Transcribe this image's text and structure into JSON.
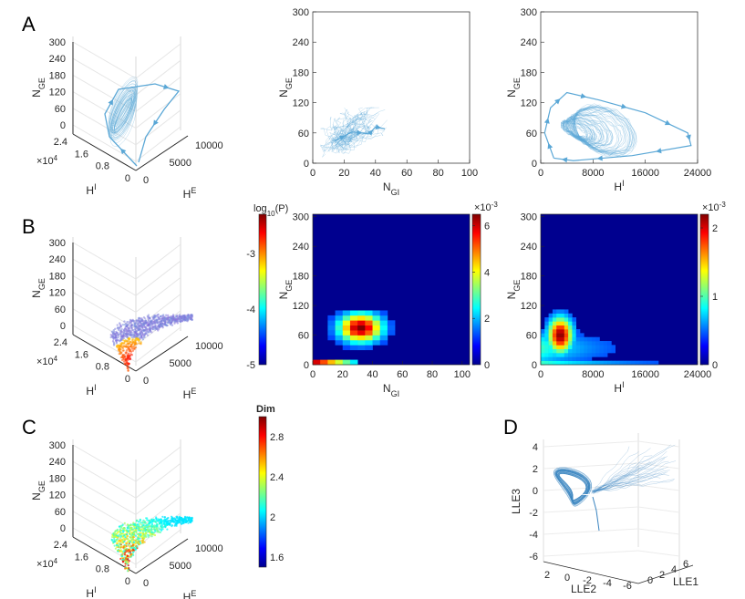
{
  "panel_labels": [
    "A",
    "B",
    "C",
    "D"
  ],
  "chart_data": [
    {
      "id": "A1",
      "type": "line",
      "projection": "3d",
      "axes": {
        "z": {
          "label": "N",
          "sub": "GE",
          "ticks": [
            "0",
            "60",
            "120",
            "180",
            "240",
            "300"
          ]
        },
        "hi": {
          "label": "H",
          "sup": "I",
          "ticks": [
            "0",
            "0.8",
            "1.6",
            "2.4"
          ],
          "multiplier": "×10",
          "mult_exp": "4"
        },
        "he": {
          "label": "H",
          "sup": "E",
          "ticks": [
            "0",
            "5000",
            "10000"
          ]
        }
      },
      "color": "#5aa7d6"
    },
    {
      "id": "A2",
      "type": "line",
      "xlabel": "N",
      "xsub": "GI",
      "ylabel": "N",
      "ysub": "GE",
      "xlim": [
        0,
        100
      ],
      "ylim": [
        0,
        300
      ],
      "xticks": [
        0,
        20,
        40,
        60,
        80,
        100
      ],
      "yticks": [
        0,
        60,
        120,
        180,
        240,
        300
      ],
      "color": "#5aa7d6",
      "trajectory": [
        [
          14,
          44
        ],
        [
          25,
          62
        ],
        [
          36,
          58
        ],
        [
          40,
          72
        ],
        [
          46,
          68
        ]
      ]
    },
    {
      "id": "A3",
      "type": "line",
      "xlabel": "H",
      "xsup": "I",
      "ylabel": "N",
      "ysub": "GE",
      "xlim": [
        0,
        24000
      ],
      "ylim": [
        0,
        300
      ],
      "xticks": [
        0,
        8000,
        16000,
        24000
      ],
      "yticks": [
        0,
        60,
        120,
        180,
        240,
        300
      ],
      "color": "#5aa7d6",
      "trajectory": [
        [
          2000,
          10
        ],
        [
          600,
          60
        ],
        [
          1500,
          110
        ],
        [
          4000,
          140
        ],
        [
          9000,
          125
        ],
        [
          16000,
          100
        ],
        [
          22500,
          60
        ],
        [
          23000,
          35
        ],
        [
          14000,
          15
        ],
        [
          5000,
          5
        ]
      ]
    },
    {
      "id": "B1",
      "type": "scatter",
      "projection": "3d",
      "axes": {
        "z": {
          "label": "N",
          "sub": "GE",
          "ticks": [
            "0",
            "60",
            "120",
            "180",
            "240",
            "300"
          ]
        },
        "hi": {
          "label": "H",
          "sup": "I",
          "ticks": [
            "0",
            "0.8",
            "1.6",
            "2.4"
          ],
          "multiplier": "×10",
          "mult_exp": "4"
        },
        "he": {
          "label": "H",
          "sup": "E",
          "ticks": [
            "0",
            "5000",
            "10000"
          ]
        }
      },
      "colorbar": {
        "label": "log",
        "label_sub": "10",
        "label_suffix": "(P)",
        "ticks": [
          "-3",
          "-4",
          "-5"
        ],
        "range": [
          -5,
          -2.3
        ],
        "colormap": "jet"
      }
    },
    {
      "id": "B2",
      "type": "heatmap",
      "xlabel": "N",
      "xsub": "GI",
      "ylabel": "N",
      "ysub": "GE",
      "xlim": [
        0,
        105
      ],
      "ylim": [
        0,
        305
      ],
      "xticks": [
        0,
        20,
        40,
        60,
        80,
        100
      ],
      "yticks": [
        0,
        60,
        120,
        180,
        240,
        300
      ],
      "colorbar": {
        "ticks": [
          0,
          2,
          4,
          6
        ],
        "multiplier": "×10",
        "mult_exp": "-3",
        "range": [
          0,
          6.5
        ],
        "colormap": "jet"
      },
      "peak": [
        32,
        75
      ]
    },
    {
      "id": "B3",
      "type": "heatmap",
      "xlabel": "H",
      "xsup": "I",
      "ylabel": "N",
      "ysub": "GE",
      "xlim": [
        0,
        24000
      ],
      "ylim": [
        0,
        305
      ],
      "xticks": [
        0,
        8000,
        16000,
        24000
      ],
      "yticks": [
        0,
        60,
        120,
        180,
        240,
        300
      ],
      "colorbar": {
        "ticks": [
          0,
          1,
          2
        ],
        "multiplier": "×10",
        "mult_exp": "-3",
        "range": [
          0,
          2.2
        ],
        "colormap": "jet"
      },
      "peak": [
        3000,
        60
      ]
    },
    {
      "id": "C1",
      "type": "scatter",
      "projection": "3d",
      "axes": {
        "z": {
          "label": "N",
          "sub": "GE",
          "ticks": [
            "0",
            "60",
            "120",
            "180",
            "240",
            "300"
          ]
        },
        "hi": {
          "label": "H",
          "sup": "I",
          "ticks": [
            "0",
            "0.8",
            "1.6",
            "2.4"
          ],
          "multiplier": "×10",
          "mult_exp": "4"
        },
        "he": {
          "label": "H",
          "sup": "E",
          "ticks": [
            "0",
            "5000",
            "10000"
          ]
        }
      },
      "colorbar": {
        "label": "Dim",
        "ticks": [
          "2.8",
          "2.4",
          "2",
          "1.6"
        ],
        "range": [
          1.5,
          3.0
        ],
        "colormap": "jet"
      }
    },
    {
      "id": "D",
      "type": "line",
      "projection": "3d",
      "axes": {
        "z": {
          "label": "LLE3",
          "ticks": [
            "4",
            "2",
            "0",
            "-2",
            "-4",
            "-6"
          ]
        },
        "lle2": {
          "label": "LLE2",
          "ticks": [
            "2",
            "0",
            "-2",
            "-4",
            "-6"
          ]
        },
        "lle1": {
          "label": "LLE1",
          "ticks": [
            "0",
            "2",
            "4",
            "6"
          ]
        }
      },
      "color": "#3a84c0"
    }
  ]
}
